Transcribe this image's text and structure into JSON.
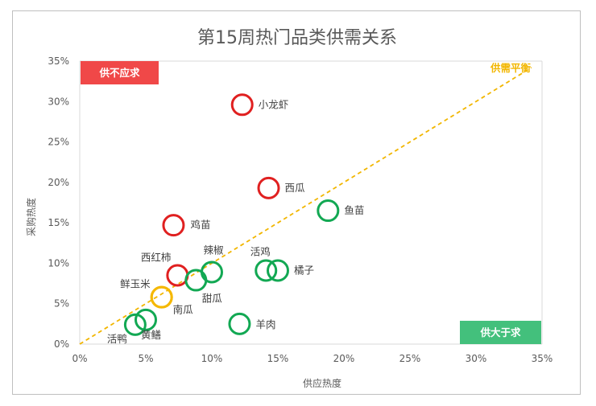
{
  "chart_data": {
    "type": "scatter",
    "title": "第15周热门品类供需关系",
    "xlabel": "供应热度",
    "ylabel": "采购热度",
    "xlim": [
      0,
      35
    ],
    "ylim": [
      0,
      35
    ],
    "x_ticks": [
      "0%",
      "5%",
      "10%",
      "15%",
      "20%",
      "25%",
      "30%",
      "35%"
    ],
    "y_ticks": [
      "0%",
      "5%",
      "10%",
      "15%",
      "20%",
      "25%",
      "30%",
      "35%"
    ],
    "grid": false,
    "diagonal_label": "供需平衡",
    "quadrant_labels": {
      "top_left": "供不应求",
      "bottom_right": "供大于求"
    },
    "colors": {
      "shortage": "#e02020",
      "surplus": "#12a853",
      "balanced": "#f5b800",
      "box_red": "#f04848",
      "box_green": "#43c07c",
      "diagonal": "#f2b600"
    },
    "points": [
      {
        "name": "小龙虾",
        "x": 12.3,
        "y": 29.6,
        "status": "shortage"
      },
      {
        "name": "西瓜",
        "x": 14.3,
        "y": 19.3,
        "status": "shortage"
      },
      {
        "name": "鸡苗",
        "x": 7.1,
        "y": 14.7,
        "status": "shortage"
      },
      {
        "name": "西红柿",
        "x": 7.4,
        "y": 8.5,
        "status": "shortage"
      },
      {
        "name": "鱼苗",
        "x": 18.8,
        "y": 16.5,
        "status": "surplus"
      },
      {
        "name": "辣椒",
        "x": 10.0,
        "y": 8.9,
        "status": "surplus"
      },
      {
        "name": "甜瓜",
        "x": 8.8,
        "y": 7.9,
        "status": "surplus"
      },
      {
        "name": "活鸡",
        "x": 14.1,
        "y": 9.1,
        "status": "surplus"
      },
      {
        "name": "橘子",
        "x": 15.0,
        "y": 9.1,
        "status": "surplus"
      },
      {
        "name": "羊肉",
        "x": 12.1,
        "y": 2.5,
        "status": "surplus"
      },
      {
        "name": "活鸭",
        "x": 4.2,
        "y": 2.4,
        "status": "surplus"
      },
      {
        "name": "黄鳝",
        "x": 5.0,
        "y": 3.0,
        "status": "surplus"
      },
      {
        "name": "鲜玉米",
        "x": 6.2,
        "y": 5.8,
        "status": "balanced"
      },
      {
        "name": "南瓜",
        "x": 6.2,
        "y": 5.8,
        "status": "balanced"
      }
    ]
  }
}
